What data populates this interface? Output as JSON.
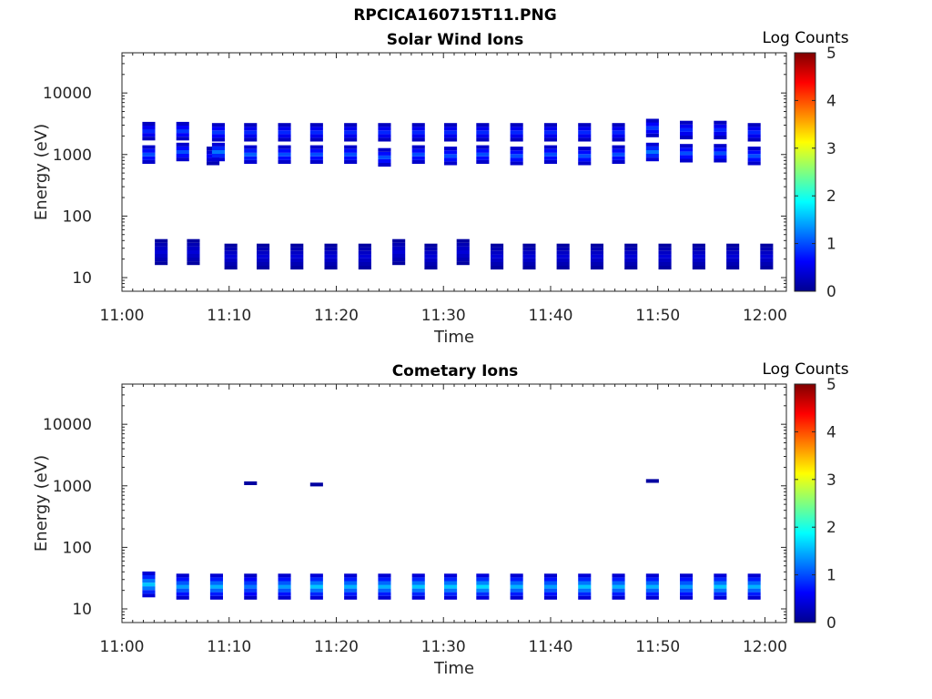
{
  "figure_title": "RPCICA160715T11.PNG",
  "chart_data": [
    {
      "type": "heatmap",
      "title": "Solar Wind Ions",
      "xlabel": "Time",
      "ylabel": "Energy (eV)",
      "y_scale": "log",
      "ylim": [
        6,
        45000
      ],
      "y_ticks": [
        10,
        100,
        1000,
        10000
      ],
      "y_tick_labels": [
        "10",
        "100",
        "1000",
        "10000"
      ],
      "xlim": [
        "11:00",
        "12:02"
      ],
      "x_ticks": [
        "11:00",
        "11:10",
        "11:20",
        "11:30",
        "11:40",
        "11:50",
        "12:00"
      ],
      "colorbar": {
        "label": "Log Counts",
        "range": [
          0,
          5
        ],
        "ticks": [
          "0",
          "1",
          "2",
          "3",
          "4",
          "5"
        ],
        "colormap": "jet"
      },
      "sweeps": [
        {
          "t": "11:02:30",
          "groups": [
            [
              2400,
              0.8
            ],
            [
              1000,
              1.0
            ]
          ]
        },
        {
          "t": "11:03:40",
          "groups": [
            [
              26,
              0.4
            ]
          ]
        },
        {
          "t": "11:05:40",
          "groups": [
            [
              2400,
              0.9
            ],
            [
              1100,
              1.0
            ]
          ]
        },
        {
          "t": "11:06:40",
          "groups": [
            [
              26,
              0.4
            ]
          ]
        },
        {
          "t": "11:08:30",
          "groups": [
            [
              950,
              0.6
            ]
          ]
        },
        {
          "t": "11:09:00",
          "groups": [
            [
              2300,
              0.9
            ],
            [
              1100,
              1.2
            ]
          ]
        },
        {
          "t": "11:10:10",
          "groups": [
            [
              22,
              0.4
            ]
          ]
        },
        {
          "t": "11:12:00",
          "groups": [
            [
              2300,
              0.8
            ],
            [
              1000,
              1.1
            ]
          ]
        },
        {
          "t": "11:13:10",
          "groups": [
            [
              22,
              0.4
            ]
          ]
        },
        {
          "t": "11:15:10",
          "groups": [
            [
              2300,
              0.8
            ],
            [
              1000,
              1.0
            ]
          ]
        },
        {
          "t": "11:16:20",
          "groups": [
            [
              22,
              0.4
            ]
          ]
        },
        {
          "t": "11:18:10",
          "groups": [
            [
              2300,
              0.8
            ],
            [
              1000,
              1.0
            ]
          ]
        },
        {
          "t": "11:19:30",
          "groups": [
            [
              22,
              0.4
            ]
          ]
        },
        {
          "t": "11:21:20",
          "groups": [
            [
              2300,
              0.8
            ],
            [
              1000,
              1.0
            ]
          ]
        },
        {
          "t": "11:22:40",
          "groups": [
            [
              22,
              0.4
            ]
          ]
        },
        {
          "t": "11:24:30",
          "groups": [
            [
              2300,
              0.8
            ],
            [
              900,
              1.0
            ]
          ]
        },
        {
          "t": "11:25:50",
          "groups": [
            [
              26,
              0.4
            ]
          ]
        },
        {
          "t": "11:27:40",
          "groups": [
            [
              2300,
              0.8
            ],
            [
              1000,
              1.0
            ]
          ]
        },
        {
          "t": "11:28:50",
          "groups": [
            [
              22,
              0.4
            ]
          ]
        },
        {
          "t": "11:30:40",
          "groups": [
            [
              2300,
              0.8
            ],
            [
              950,
              1.0
            ]
          ]
        },
        {
          "t": "11:31:50",
          "groups": [
            [
              26,
              0.4
            ]
          ]
        },
        {
          "t": "11:33:40",
          "groups": [
            [
              2300,
              0.8
            ],
            [
              1000,
              1.0
            ]
          ]
        },
        {
          "t": "11:35:00",
          "groups": [
            [
              22,
              0.4
            ]
          ]
        },
        {
          "t": "11:36:50",
          "groups": [
            [
              2300,
              0.8
            ],
            [
              950,
              1.0
            ]
          ]
        },
        {
          "t": "11:38:00",
          "groups": [
            [
              22,
              0.4
            ]
          ]
        },
        {
          "t": "11:40:00",
          "groups": [
            [
              2300,
              0.8
            ],
            [
              1000,
              1.0
            ]
          ]
        },
        {
          "t": "11:41:10",
          "groups": [
            [
              22,
              0.4
            ]
          ]
        },
        {
          "t": "11:43:10",
          "groups": [
            [
              2300,
              0.8
            ],
            [
              950,
              1.0
            ]
          ]
        },
        {
          "t": "11:44:20",
          "groups": [
            [
              22,
              0.4
            ]
          ]
        },
        {
          "t": "11:46:20",
          "groups": [
            [
              2300,
              0.8
            ],
            [
              1000,
              1.0
            ]
          ]
        },
        {
          "t": "11:47:30",
          "groups": [
            [
              22,
              0.4
            ]
          ]
        },
        {
          "t": "11:49:30",
          "groups": [
            [
              2700,
              0.9
            ],
            [
              1100,
              1.2
            ]
          ]
        },
        {
          "t": "11:50:40",
          "groups": [
            [
              22,
              0.4
            ]
          ]
        },
        {
          "t": "11:52:40",
          "groups": [
            [
              2500,
              0.8
            ],
            [
              1050,
              1.0
            ]
          ]
        },
        {
          "t": "11:53:50",
          "groups": [
            [
              22,
              0.4
            ]
          ]
        },
        {
          "t": "11:55:50",
          "groups": [
            [
              2500,
              0.8
            ],
            [
              1050,
              1.0
            ]
          ]
        },
        {
          "t": "11:57:00",
          "groups": [
            [
              22,
              0.4
            ]
          ]
        },
        {
          "t": "11:59:00",
          "groups": [
            [
              2300,
              0.8
            ],
            [
              950,
              1.0
            ]
          ]
        },
        {
          "t": "12:00:10",
          "groups": [
            [
              22,
              0.4
            ]
          ]
        }
      ]
    },
    {
      "type": "heatmap",
      "title": "Cometary Ions",
      "xlabel": "Time",
      "ylabel": "Energy (eV)",
      "y_scale": "log",
      "ylim": [
        6,
        45000
      ],
      "y_ticks": [
        10,
        100,
        1000,
        10000
      ],
      "y_tick_labels": [
        "10",
        "100",
        "1000",
        "10000"
      ],
      "xlim": [
        "11:00",
        "12:02"
      ],
      "x_ticks": [
        "11:00",
        "11:10",
        "11:20",
        "11:30",
        "11:40",
        "11:50",
        "12:00"
      ],
      "colorbar": {
        "label": "Log Counts",
        "range": [
          0,
          5
        ],
        "ticks": [
          "0",
          "1",
          "2",
          "3",
          "4",
          "5"
        ],
        "colormap": "jet"
      },
      "sweeps": [
        {
          "t": "11:02:30",
          "groups": [
            [
              25,
              1.6
            ]
          ]
        },
        {
          "t": "11:05:40",
          "groups": [
            [
              23,
              1.4
            ]
          ]
        },
        {
          "t": "11:08:50",
          "groups": [
            [
              23,
              1.5
            ]
          ]
        },
        {
          "t": "11:12:00",
          "groups": [
            [
              23,
              1.2
            ],
            [
              1100,
              0.2
            ]
          ]
        },
        {
          "t": "11:15:10",
          "groups": [
            [
              23,
              1.4
            ]
          ]
        },
        {
          "t": "11:18:10",
          "groups": [
            [
              23,
              1.6
            ],
            [
              1050,
              0.2
            ]
          ]
        },
        {
          "t": "11:21:20",
          "groups": [
            [
              23,
              1.5
            ]
          ]
        },
        {
          "t": "11:24:30",
          "groups": [
            [
              23,
              1.5
            ]
          ]
        },
        {
          "t": "11:27:40",
          "groups": [
            [
              23,
              1.6
            ]
          ]
        },
        {
          "t": "11:30:40",
          "groups": [
            [
              23,
              1.6
            ]
          ]
        },
        {
          "t": "11:33:40",
          "groups": [
            [
              23,
              1.7
            ]
          ]
        },
        {
          "t": "11:36:50",
          "groups": [
            [
              23,
              1.5
            ]
          ]
        },
        {
          "t": "11:40:00",
          "groups": [
            [
              23,
              1.4
            ]
          ]
        },
        {
          "t": "11:43:10",
          "groups": [
            [
              23,
              1.6
            ]
          ]
        },
        {
          "t": "11:46:20",
          "groups": [
            [
              23,
              1.5
            ]
          ]
        },
        {
          "t": "11:49:30",
          "groups": [
            [
              23,
              1.5
            ],
            [
              1200,
              0.2
            ]
          ]
        },
        {
          "t": "11:52:40",
          "groups": [
            [
              23,
              1.4
            ]
          ]
        },
        {
          "t": "11:55:50",
          "groups": [
            [
              23,
              1.6
            ]
          ]
        },
        {
          "t": "11:59:00",
          "groups": [
            [
              23,
              1.5
            ]
          ]
        }
      ]
    }
  ]
}
